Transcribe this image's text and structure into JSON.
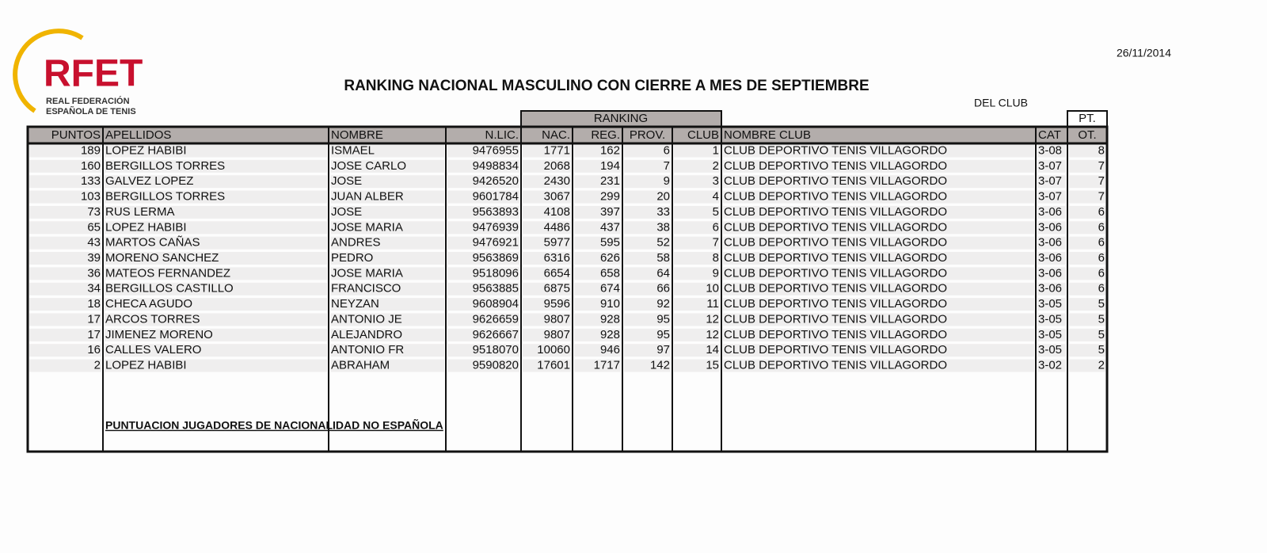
{
  "logo": {
    "name": "RFET",
    "line_1": "REAL FEDERACIÓN",
    "line_2": "ESPAÑOLA DE TENIS"
  },
  "date": "26/11/2014",
  "title": "RANKING NACIONAL MASCULINO CON CIERRE A MES DE SEPTIEMBRE",
  "group_headers": {
    "ranking": "RANKING",
    "del_club": "DEL CLUB",
    "pt": "PT."
  },
  "table": {
    "columns": [
      "PUNTOS",
      "APELLIDOS",
      "NOMBRE",
      "N.LIC.",
      "NAC.",
      "REG.",
      "PROV.",
      "CLUB",
      "NOMBRE CLUB",
      "CAT",
      "OT."
    ],
    "rows": [
      [
        189,
        "LOPEZ HABIBI",
        "ISMAEL",
        9476955,
        1771,
        162,
        6,
        1,
        "CLUB DEPORTIVO TENIS VILLAGORDO",
        "3-08",
        8
      ],
      [
        160,
        "BERGILLOS TORRES",
        "JOSE CARLO",
        9498834,
        2068,
        194,
        7,
        2,
        "CLUB DEPORTIVO TENIS VILLAGORDO",
        "3-07",
        7
      ],
      [
        133,
        "GALVEZ LOPEZ",
        "JOSE",
        9426520,
        2430,
        231,
        9,
        3,
        "CLUB DEPORTIVO TENIS VILLAGORDO",
        "3-07",
        7
      ],
      [
        103,
        "BERGILLOS TORRES",
        "JUAN ALBER",
        9601784,
        3067,
        299,
        20,
        4,
        "CLUB DEPORTIVO TENIS VILLAGORDO",
        "3-07",
        7
      ],
      [
        73,
        "RUS LERMA",
        "JOSE",
        9563893,
        4108,
        397,
        33,
        5,
        "CLUB DEPORTIVO TENIS VILLAGORDO",
        "3-06",
        6
      ],
      [
        65,
        "LOPEZ HABIBI",
        "JOSE MARIA",
        9476939,
        4486,
        437,
        38,
        6,
        "CLUB DEPORTIVO TENIS VILLAGORDO",
        "3-06",
        6
      ],
      [
        43,
        "MARTOS CAÑAS",
        "ANDRES",
        9476921,
        5977,
        595,
        52,
        7,
        "CLUB DEPORTIVO TENIS VILLAGORDO",
        "3-06",
        6
      ],
      [
        39,
        "MORENO SANCHEZ",
        "PEDRO",
        9563869,
        6316,
        626,
        58,
        8,
        "CLUB DEPORTIVO TENIS VILLAGORDO",
        "3-06",
        6
      ],
      [
        36,
        "MATEOS FERNANDEZ",
        "JOSE MARIA",
        9518096,
        6654,
        658,
        64,
        9,
        "CLUB DEPORTIVO TENIS VILLAGORDO",
        "3-06",
        6
      ],
      [
        34,
        "BERGILLOS CASTILLO",
        "FRANCISCO",
        9563885,
        6875,
        674,
        66,
        10,
        "CLUB DEPORTIVO TENIS VILLAGORDO",
        "3-06",
        6
      ],
      [
        18,
        "CHECA AGUDO",
        "NEYZAN",
        9608904,
        9596,
        910,
        92,
        11,
        "CLUB DEPORTIVO TENIS VILLAGORDO",
        "3-05",
        5
      ],
      [
        17,
        "ARCOS TORRES",
        "ANTONIO JE",
        9626659,
        9807,
        928,
        95,
        12,
        "CLUB DEPORTIVO TENIS VILLAGORDO",
        "3-05",
        5
      ],
      [
        17,
        "JIMENEZ MORENO",
        "ALEJANDRO",
        9626667,
        9807,
        928,
        95,
        12,
        "CLUB DEPORTIVO TENIS VILLAGORDO",
        "3-05",
        5
      ],
      [
        16,
        "CALLES VALERO",
        "ANTONIO FR",
        9518070,
        10060,
        946,
        97,
        14,
        "CLUB DEPORTIVO TENIS VILLAGORDO",
        "3-05",
        5
      ],
      [
        2,
        "LOPEZ HABIBI",
        "ABRAHAM",
        9590820,
        17601,
        1717,
        142,
        15,
        "CLUB DEPORTIVO TENIS VILLAGORDO",
        "3-02",
        2
      ]
    ]
  },
  "footnote": "PUNTUACION JUGADORES DE NACIONALIDAD NO ESPAÑOLA"
}
